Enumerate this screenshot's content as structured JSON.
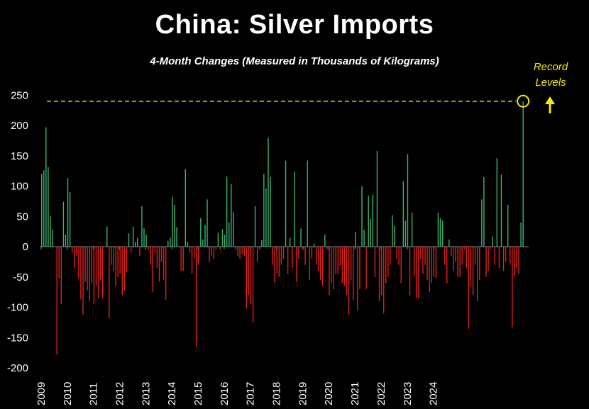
{
  "chart_data": {
    "type": "bar",
    "title": "China: Silver Imports",
    "subtitle": "4-Month Changes (Measured in Thousands of Kilograms)",
    "xlabel": "",
    "ylabel": "",
    "ylim": [
      -200,
      250
    ],
    "yticks": [
      250,
      200,
      150,
      100,
      50,
      0,
      -50,
      -100,
      -150,
      -200
    ],
    "xtick_labels": [
      "2009",
      "2010",
      "2011",
      "2012",
      "2013",
      "2014",
      "2015",
      "2016",
      "2017",
      "2018",
      "2019",
      "2020",
      "2021",
      "2022",
      "2023",
      "2024"
    ],
    "grid": false,
    "colors": {
      "positive": "#3cb371",
      "negative": "#e0201a",
      "annotation": "#f5ea00"
    },
    "annotation": {
      "text": "Record Levels",
      "text_line1": "Record",
      "text_line2": "Levels",
      "level": 240
    },
    "start": "2009-01",
    "interval": "monthly",
    "values": [
      120,
      126,
      197,
      131,
      50,
      28,
      0,
      -178,
      -52,
      -95,
      74,
      20,
      113,
      90,
      -10,
      -35,
      -15,
      -52,
      -87,
      -112,
      -58,
      -72,
      -90,
      -60,
      -95,
      -65,
      -85,
      -55,
      -85,
      0,
      33,
      -118,
      -30,
      -40,
      -65,
      -50,
      -45,
      -80,
      -72,
      -42,
      22,
      -10,
      33,
      8,
      15,
      -15,
      67,
      30,
      20,
      -5,
      -30,
      -75,
      -10,
      -35,
      -58,
      -25,
      -55,
      -88,
      10,
      15,
      82,
      69,
      32,
      0,
      -40,
      -40,
      128,
      8,
      -10,
      -45,
      -20,
      -165,
      -30,
      47,
      12,
      36,
      78,
      -25,
      -15,
      -20,
      -5,
      23,
      -5,
      29,
      20,
      116,
      40,
      103,
      57,
      -5,
      -15,
      -20,
      -12,
      -15,
      -102,
      -80,
      -95,
      -125,
      67,
      -25,
      -5,
      11,
      120,
      96,
      180,
      115,
      -30,
      -60,
      -45,
      -50,
      -30,
      -20,
      142,
      -45,
      15,
      -35,
      124,
      -58,
      -20,
      30,
      -5,
      -30,
      142,
      -55,
      -20,
      5,
      -30,
      -40,
      -55,
      -65,
      20,
      -5,
      -80,
      -60,
      -70,
      -45,
      -45,
      -32,
      -60,
      -65,
      -80,
      -112,
      -55,
      -88,
      24,
      -105,
      -70,
      100,
      28,
      -70,
      84,
      46,
      86,
      -50,
      158,
      -90,
      -80,
      -110,
      -60,
      -50,
      -30,
      52,
      34,
      -20,
      -30,
      -60,
      108,
      43,
      153,
      -80,
      56,
      -50,
      -85,
      -85,
      -20,
      -45,
      -30,
      -55,
      -75,
      -60,
      -50,
      -52,
      56,
      47,
      43,
      -30,
      -60,
      12,
      -15,
      -40,
      -25,
      -50,
      -50,
      -30,
      -5,
      -35,
      -135,
      -65,
      -80,
      -30,
      -90,
      -55,
      78,
      115,
      -50,
      -40,
      -5,
      17,
      -30,
      146,
      -35,
      119,
      -40,
      -25,
      69,
      -30,
      -133,
      -50,
      -35,
      -45,
      40,
      240
    ]
  }
}
